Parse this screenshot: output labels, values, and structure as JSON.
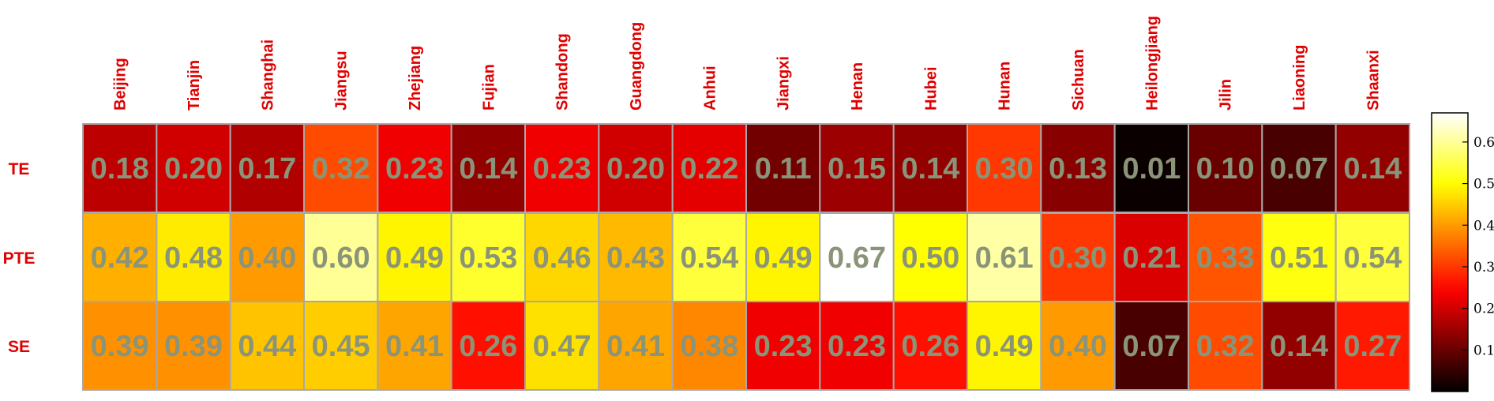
{
  "chart_data": {
    "type": "heatmap",
    "columns": [
      "Beijing",
      "Tianjin",
      "Shanghai",
      "Jiangsu",
      "Zhejiang",
      "Fujian",
      "Shandong",
      "Guangdong",
      "Anhui",
      "Jiangxi",
      "Henan",
      "Hubei",
      "Hunan",
      "Sichuan",
      "Heilongjiang",
      "Jilin",
      "Liaoning",
      "Shaanxi"
    ],
    "rows": [
      "TE",
      "PTE",
      "SE"
    ],
    "values": [
      [
        0.18,
        0.2,
        0.17,
        0.32,
        0.23,
        0.14,
        0.23,
        0.2,
        0.22,
        0.11,
        0.15,
        0.14,
        0.3,
        0.13,
        0.01,
        0.1,
        0.07,
        0.14
      ],
      [
        0.42,
        0.48,
        0.4,
        0.6,
        0.49,
        0.53,
        0.46,
        0.43,
        0.54,
        0.49,
        0.67,
        0.5,
        0.61,
        0.3,
        0.21,
        0.33,
        0.51,
        0.54
      ],
      [
        0.39,
        0.39,
        0.44,
        0.45,
        0.41,
        0.26,
        0.47,
        0.41,
        0.38,
        0.23,
        0.23,
        0.26,
        0.49,
        0.4,
        0.07,
        0.32,
        0.14,
        0.27
      ]
    ],
    "value_labels": [
      [
        "0.18",
        "0.20",
        "0.17",
        "0.32",
        "0.23",
        "0.14",
        "0.23",
        "0.20",
        "0.22",
        "0.11",
        "0.15",
        "0.14",
        "0.30",
        "0.13",
        "0.01",
        "0.10",
        "0.07",
        "0.14"
      ],
      [
        "0.42",
        "0.48",
        "0.40",
        "0.60",
        "0.49",
        "0.53",
        "0.46",
        "0.43",
        "0.54",
        "0.49",
        "0.67",
        "0.50",
        "0.61",
        "0.30",
        "0.21",
        "0.33",
        "0.51",
        "0.54"
      ],
      [
        "0.39",
        "0.39",
        "0.44",
        "0.45",
        "0.41",
        "0.26",
        "0.47",
        "0.41",
        "0.38",
        "0.23",
        "0.23",
        "0.26",
        "0.49",
        "0.40",
        "0.07",
        "0.32",
        "0.14",
        "0.27"
      ]
    ],
    "colorscale": "hot",
    "color_range": [
      0,
      0.67
    ],
    "colorbar": {
      "ticks": [
        0.1,
        0.2,
        0.3,
        0.4,
        0.5,
        0.6
      ],
      "tick_labels": [
        "0.1",
        "0.2",
        "0.3",
        "0.4",
        "0.5",
        "0.6"
      ]
    },
    "label_color": "#e00000",
    "value_text_color": "#8a9478",
    "grid_color": "#a8a8a8"
  }
}
